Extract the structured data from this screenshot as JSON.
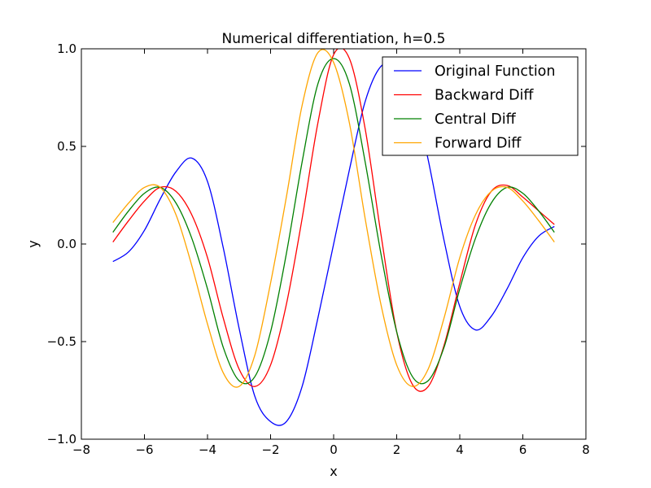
{
  "chart_data": {
    "type": "line",
    "title": "Numerical differentiation, h=0.5",
    "xlabel": "x",
    "ylabel": "y",
    "xlim": [
      -8,
      8
    ],
    "ylim": [
      -1.0,
      1.0
    ],
    "xticks": [
      "−8",
      "−6",
      "−4",
      "−2",
      "0",
      "2",
      "4",
      "6",
      "8"
    ],
    "yticks": [
      "−1.0",
      "−0.5",
      "0.0",
      "0.5",
      "1.0"
    ],
    "grid": false,
    "legend_position": "top-right",
    "series": [
      {
        "name": "Original Function",
        "color": "#0000ff",
        "x": [
          -7.0,
          -6.5,
          -6.0,
          -5.5,
          -5.0,
          -4.5,
          -4.0,
          -3.5,
          -3.0,
          -2.5,
          -2.0,
          -1.5,
          -1.0,
          -0.5,
          0.0,
          0.5,
          1.0,
          1.5,
          2.0,
          2.5,
          3.0,
          3.5,
          4.0,
          4.5,
          5.0,
          5.5,
          6.0,
          6.5,
          7.0
        ],
        "y": [
          -0.09,
          -0.04,
          0.07,
          0.23,
          0.37,
          0.44,
          0.32,
          -0.02,
          -0.43,
          -0.78,
          -0.91,
          -0.91,
          -0.73,
          -0.38,
          0.0,
          0.38,
          0.73,
          0.91,
          0.91,
          0.78,
          0.43,
          0.02,
          -0.32,
          -0.44,
          -0.37,
          -0.23,
          -0.07,
          0.04,
          0.09
        ]
      },
      {
        "name": "Backward Diff",
        "color": "#ff0000",
        "x": [
          -7.0,
          -6.5,
          -6.0,
          -5.5,
          -5.0,
          -4.5,
          -4.0,
          -3.5,
          -3.0,
          -2.5,
          -2.0,
          -1.5,
          -1.0,
          -0.5,
          0.0,
          0.5,
          1.0,
          1.5,
          2.0,
          2.5,
          3.0,
          3.5,
          4.0,
          4.5,
          5.0,
          5.5,
          6.0,
          6.5,
          7.0
        ],
        "y": [
          0.01,
          0.12,
          0.22,
          0.29,
          0.27,
          0.15,
          -0.07,
          -0.38,
          -0.64,
          -0.73,
          -0.62,
          -0.31,
          0.13,
          0.62,
          0.97,
          0.95,
          0.59,
          0.05,
          -0.45,
          -0.72,
          -0.73,
          -0.52,
          -0.2,
          0.1,
          0.27,
          0.3,
          0.24,
          0.17,
          0.1
        ]
      },
      {
        "name": "Central Diff",
        "color": "#008000",
        "x": [
          -7.0,
          -6.5,
          -6.0,
          -5.5,
          -5.0,
          -4.5,
          -4.0,
          -3.5,
          -3.0,
          -2.5,
          -2.0,
          -1.5,
          -1.0,
          -0.5,
          0.0,
          0.5,
          1.0,
          1.5,
          2.0,
          2.5,
          3.0,
          3.5,
          4.0,
          4.5,
          5.0,
          5.5,
          6.0,
          6.5,
          7.0
        ],
        "y": [
          0.06,
          0.17,
          0.26,
          0.29,
          0.21,
          0.03,
          -0.23,
          -0.53,
          -0.7,
          -0.68,
          -0.45,
          -0.05,
          0.42,
          0.82,
          0.95,
          0.82,
          0.42,
          -0.05,
          -0.45,
          -0.68,
          -0.7,
          -0.53,
          -0.23,
          0.03,
          0.21,
          0.29,
          0.26,
          0.17,
          0.06
        ]
      },
      {
        "name": "Forward Diff",
        "color": "#ffa500",
        "x": [
          -7.0,
          -6.5,
          -6.0,
          -5.5,
          -5.0,
          -4.5,
          -4.0,
          -3.5,
          -3.0,
          -2.5,
          -2.0,
          -1.5,
          -1.0,
          -0.5,
          0.0,
          0.5,
          1.0,
          1.5,
          2.0,
          2.5,
          3.0,
          3.5,
          4.0,
          4.5,
          5.0,
          5.5,
          6.0,
          6.5,
          7.0
        ],
        "y": [
          0.11,
          0.21,
          0.29,
          0.29,
          0.15,
          -0.11,
          -0.41,
          -0.66,
          -0.73,
          -0.57,
          -0.2,
          0.24,
          0.71,
          0.98,
          0.93,
          0.62,
          0.13,
          -0.31,
          -0.62,
          -0.73,
          -0.64,
          -0.38,
          -0.07,
          0.15,
          0.27,
          0.29,
          0.22,
          0.12,
          0.01
        ]
      }
    ]
  }
}
